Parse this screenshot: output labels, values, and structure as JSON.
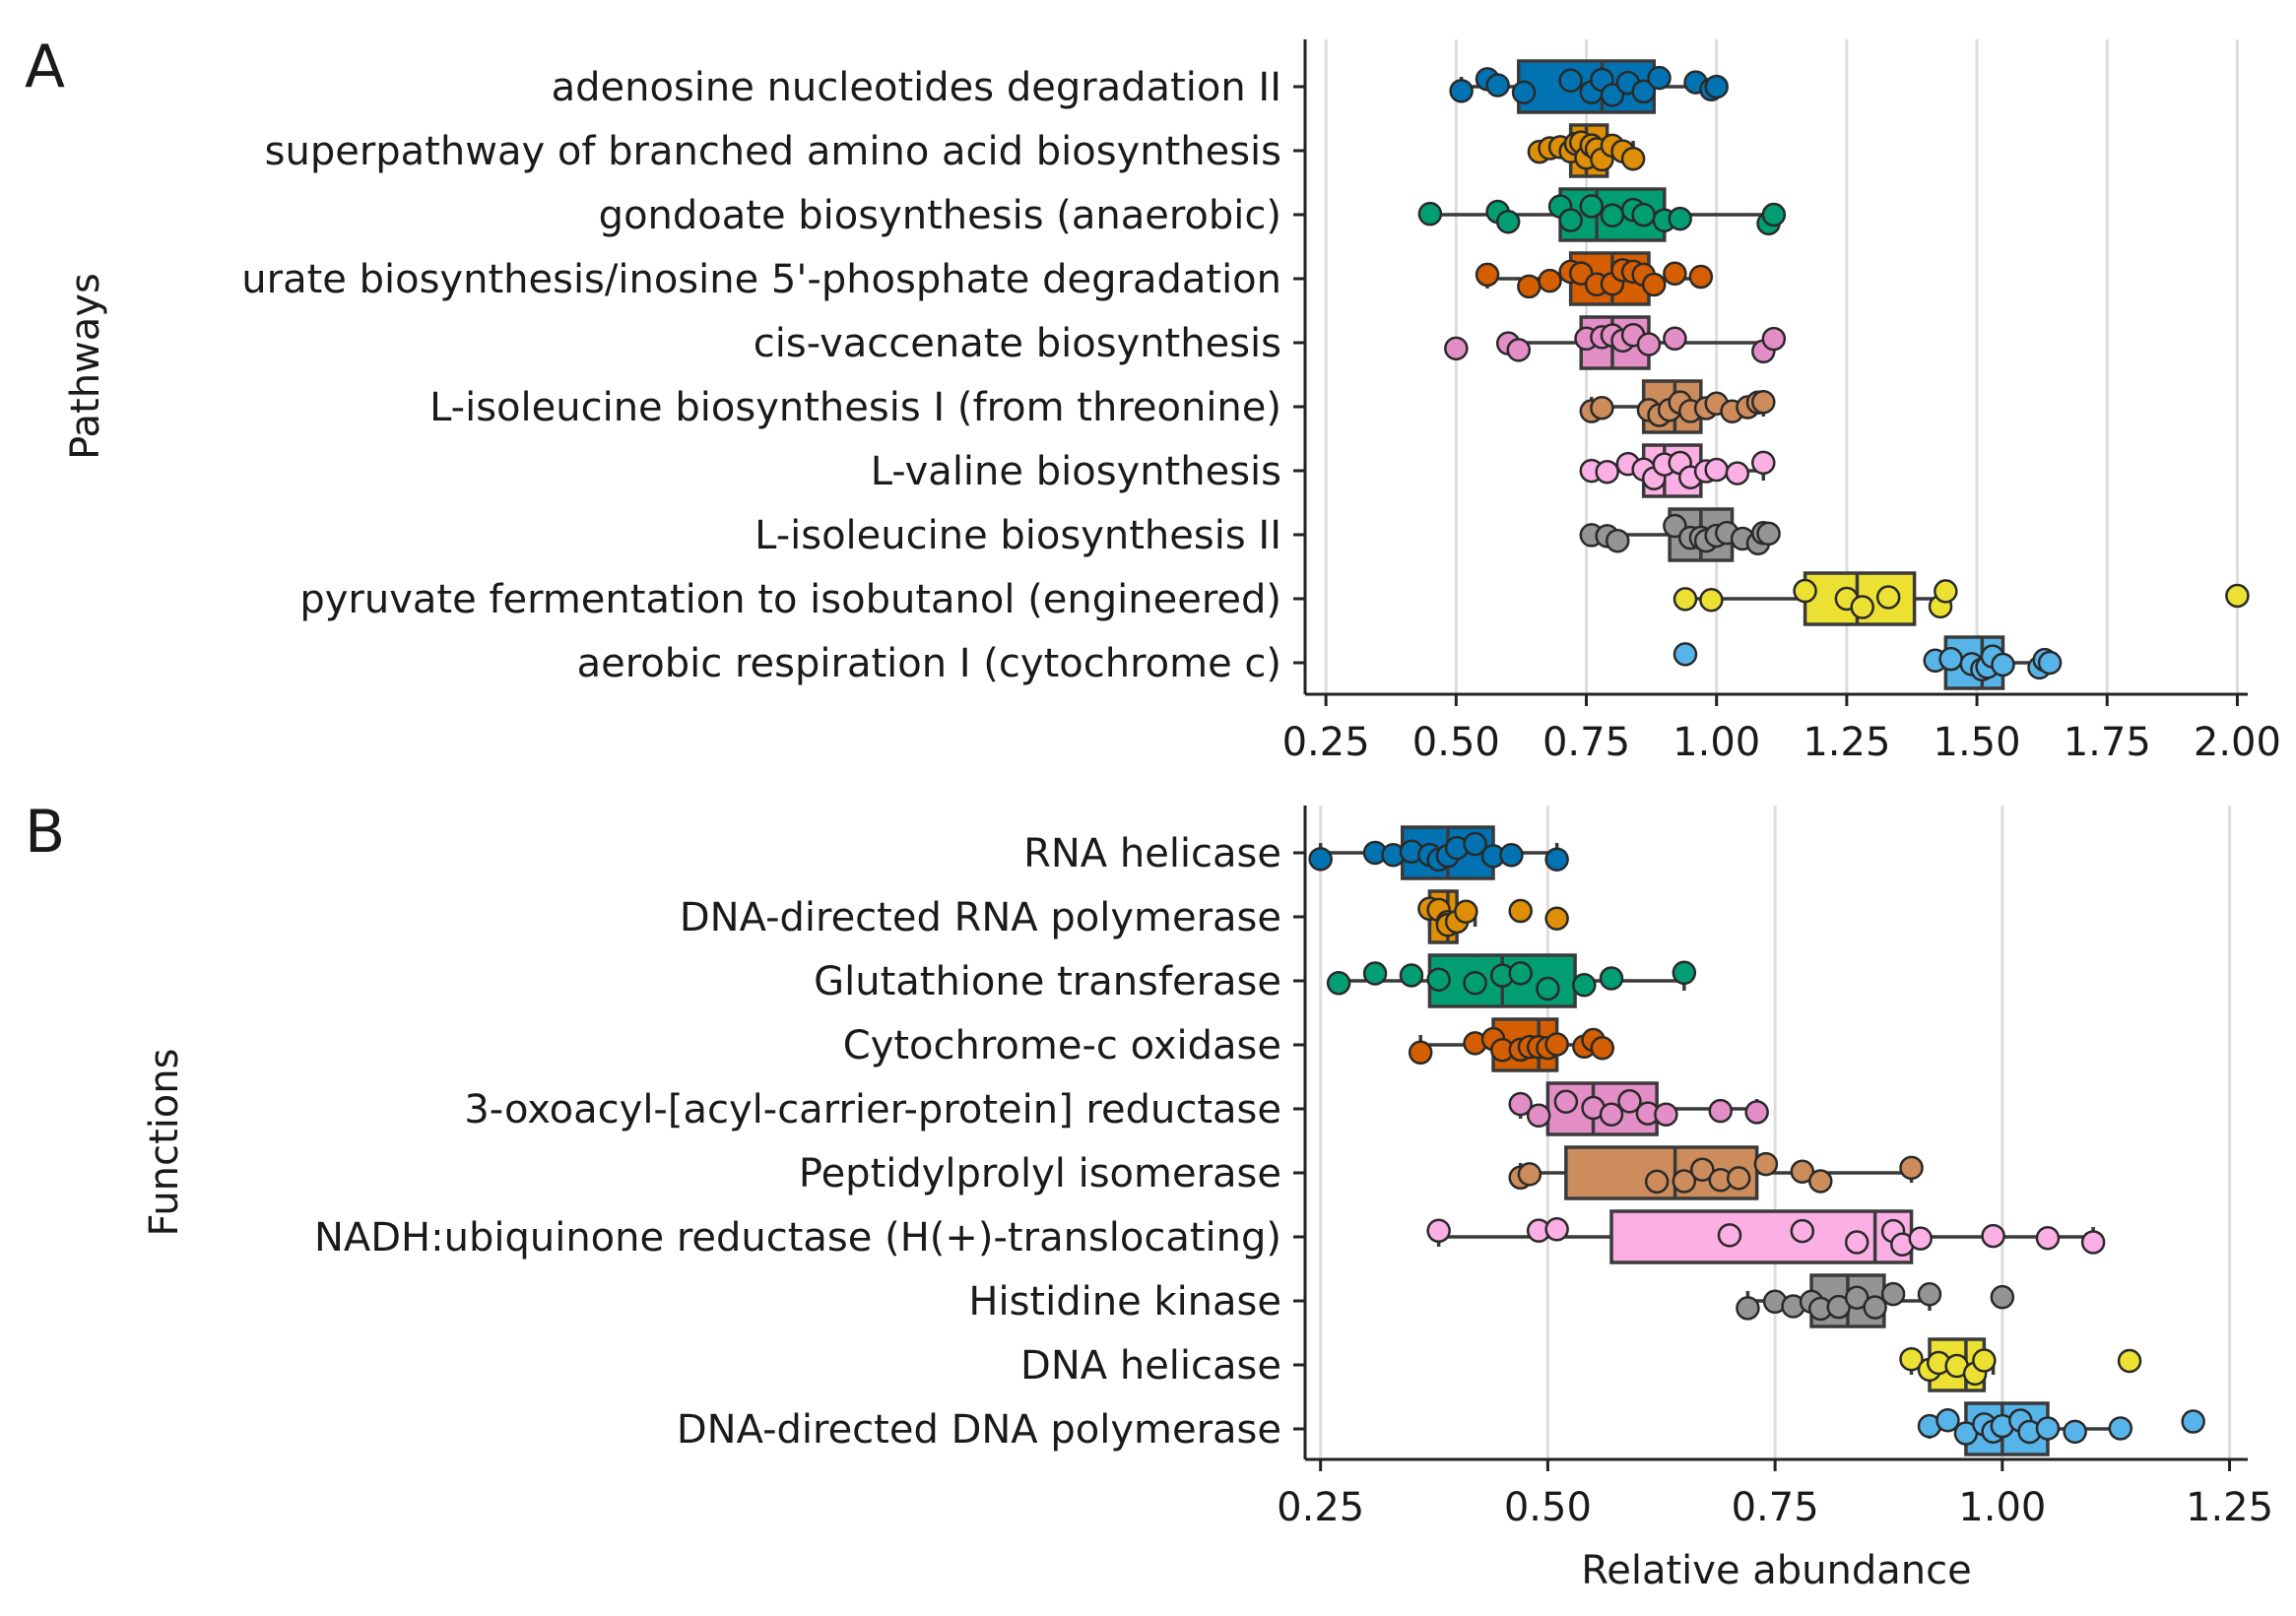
{
  "chart_data": [
    {
      "type": "boxplot",
      "panel": "A",
      "orientation": "horizontal",
      "ylabel": "Pathways",
      "xlabel": "",
      "xlim": [
        0.21,
        2.02
      ],
      "xticks": [
        0.25,
        0.5,
        0.75,
        1.0,
        1.25,
        1.5,
        1.75,
        2.0
      ],
      "xtick_labels": [
        "0.25",
        "0.50",
        "0.75",
        "1.00",
        "1.25",
        "1.50",
        "1.75",
        "2.00"
      ],
      "grid": "x",
      "series": [
        {
          "name": "adenosine nucleotides degradation II",
          "color": "#0173b2",
          "q1": 0.62,
          "median": 0.78,
          "q3": 0.88,
          "whisker_low": 0.51,
          "whisker_high": 1.0,
          "points": [
            0.51,
            0.56,
            0.58,
            0.63,
            0.72,
            0.76,
            0.78,
            0.8,
            0.83,
            0.86,
            0.89,
            0.96,
            0.99,
            1.0
          ]
        },
        {
          "name": "superpathway of branched amino acid biosynthesis",
          "color": "#de8f05",
          "q1": 0.72,
          "median": 0.75,
          "q3": 0.79,
          "whisker_low": 0.66,
          "whisker_high": 0.84,
          "points": [
            0.66,
            0.68,
            0.7,
            0.72,
            0.73,
            0.74,
            0.75,
            0.76,
            0.77,
            0.78,
            0.8,
            0.82,
            0.84
          ]
        },
        {
          "name": "gondoate biosynthesis (anaerobic)",
          "color": "#029e73",
          "q1": 0.7,
          "median": 0.77,
          "q3": 0.9,
          "whisker_low": 0.45,
          "whisker_high": 1.11,
          "points": [
            0.45,
            0.58,
            0.6,
            0.7,
            0.72,
            0.76,
            0.8,
            0.84,
            0.86,
            0.9,
            0.93,
            1.1,
            1.11
          ]
        },
        {
          "name": "urate biosynthesis/inosine 5'-phosphate degradation",
          "color": "#d55e00",
          "q1": 0.72,
          "median": 0.8,
          "q3": 0.87,
          "whisker_low": 0.56,
          "whisker_high": 0.97,
          "points": [
            0.56,
            0.64,
            0.68,
            0.72,
            0.74,
            0.77,
            0.8,
            0.82,
            0.84,
            0.86,
            0.88,
            0.92,
            0.97
          ]
        },
        {
          "name": "cis-vaccenate biosynthesis",
          "color": "#e48ec8",
          "q1": 0.74,
          "median": 0.8,
          "q3": 0.87,
          "whisker_low": 0.6,
          "whisker_high": 1.11,
          "points": [
            0.5,
            0.6,
            0.62,
            0.75,
            0.78,
            0.8,
            0.82,
            0.84,
            0.87,
            0.92,
            1.09,
            1.11
          ]
        },
        {
          "name": "L-isoleucine biosynthesis I (from threonine)",
          "color": "#cc8c5c",
          "q1": 0.86,
          "median": 0.92,
          "q3": 0.97,
          "whisker_low": 0.76,
          "whisker_high": 1.09,
          "points": [
            0.76,
            0.78,
            0.87,
            0.89,
            0.91,
            0.93,
            0.95,
            0.98,
            1.0,
            1.03,
            1.06,
            1.08,
            1.09
          ]
        },
        {
          "name": "L-valine biosynthesis",
          "color": "#fbafe4",
          "q1": 0.86,
          "median": 0.9,
          "q3": 0.97,
          "whisker_low": 0.76,
          "whisker_high": 1.09,
          "points": [
            0.76,
            0.79,
            0.83,
            0.86,
            0.88,
            0.9,
            0.93,
            0.95,
            0.98,
            1.0,
            1.04,
            1.09
          ]
        },
        {
          "name": "L-isoleucine biosynthesis II",
          "color": "#949494",
          "q1": 0.91,
          "median": 0.97,
          "q3": 1.03,
          "whisker_low": 0.76,
          "whisker_high": 1.1,
          "points": [
            0.76,
            0.79,
            0.81,
            0.92,
            0.95,
            0.97,
            0.98,
            1.0,
            1.02,
            1.05,
            1.08,
            1.09,
            1.1
          ]
        },
        {
          "name": "pyruvate fermentation to isobutanol (engineered)",
          "color": "#ece133",
          "q1": 1.17,
          "median": 1.27,
          "q3": 1.38,
          "whisker_low": 0.94,
          "whisker_high": 1.44,
          "points": [
            0.94,
            0.99,
            1.17,
            1.25,
            1.28,
            1.33,
            1.43,
            1.44,
            2.0
          ]
        },
        {
          "name": "aerobic respiration I (cytochrome c)",
          "color": "#56b4e9",
          "q1": 1.44,
          "median": 1.51,
          "q3": 1.55,
          "whisker_low": 1.42,
          "whisker_high": 1.64,
          "points": [
            0.94,
            1.42,
            1.45,
            1.49,
            1.51,
            1.52,
            1.53,
            1.55,
            1.62,
            1.63,
            1.64
          ]
        }
      ]
    },
    {
      "type": "boxplot",
      "panel": "B",
      "orientation": "horizontal",
      "ylabel": "Functions",
      "xlabel": "Relative abundance",
      "xlim": [
        0.233,
        1.27
      ],
      "xticks": [
        0.25,
        0.5,
        0.75,
        1.0,
        1.25
      ],
      "xtick_labels": [
        "0.25",
        "0.50",
        "0.75",
        "1.00",
        "1.25"
      ],
      "grid": "x",
      "series": [
        {
          "name": "RNA helicase",
          "color": "#0173b2",
          "q1": 0.34,
          "median": 0.39,
          "q3": 0.44,
          "whisker_low": 0.25,
          "whisker_high": 0.51,
          "points": [
            0.25,
            0.31,
            0.33,
            0.35,
            0.37,
            0.38,
            0.39,
            0.4,
            0.42,
            0.44,
            0.46,
            0.51
          ]
        },
        {
          "name": "DNA-directed RNA polymerase",
          "color": "#de8f05",
          "q1": 0.37,
          "median": 0.39,
          "q3": 0.4,
          "whisker_low": 0.37,
          "whisker_high": 0.42,
          "points": [
            0.37,
            0.38,
            0.39,
            0.39,
            0.4,
            0.41,
            0.47,
            0.51
          ]
        },
        {
          "name": "Glutathione transferase",
          "color": "#029e73",
          "q1": 0.37,
          "median": 0.45,
          "q3": 0.53,
          "whisker_low": 0.27,
          "whisker_high": 0.65,
          "points": [
            0.27,
            0.31,
            0.35,
            0.38,
            0.42,
            0.45,
            0.47,
            0.5,
            0.54,
            0.57,
            0.65
          ]
        },
        {
          "name": "Cytochrome-c oxidase",
          "color": "#d55e00",
          "q1": 0.44,
          "median": 0.49,
          "q3": 0.51,
          "whisker_low": 0.36,
          "whisker_high": 0.56,
          "points": [
            0.36,
            0.42,
            0.44,
            0.45,
            0.47,
            0.48,
            0.49,
            0.5,
            0.51,
            0.54,
            0.55,
            0.56
          ]
        },
        {
          "name": "3-oxoacyl-[acyl-carrier-protein] reductase",
          "color": "#e48ec8",
          "q1": 0.5,
          "median": 0.55,
          "q3": 0.62,
          "whisker_low": 0.47,
          "whisker_high": 0.73,
          "points": [
            0.47,
            0.49,
            0.52,
            0.55,
            0.57,
            0.59,
            0.61,
            0.63,
            0.69,
            0.73
          ]
        },
        {
          "name": "Peptidylprolyl isomerase",
          "color": "#cc8c5c",
          "q1": 0.52,
          "median": 0.64,
          "q3": 0.73,
          "whisker_low": 0.47,
          "whisker_high": 0.9,
          "points": [
            0.47,
            0.48,
            0.62,
            0.65,
            0.67,
            0.69,
            0.71,
            0.74,
            0.78,
            0.8,
            0.9
          ]
        },
        {
          "name": "NADH:ubiquinone reductase (H(+)-translocating)",
          "color": "#fbafe4",
          "q1": 0.57,
          "median": 0.86,
          "q3": 0.9,
          "whisker_low": 0.38,
          "whisker_high": 1.1,
          "points": [
            0.38,
            0.49,
            0.51,
            0.7,
            0.78,
            0.84,
            0.88,
            0.89,
            0.91,
            0.99,
            1.05,
            1.1
          ]
        },
        {
          "name": "Histidine kinase",
          "color": "#949494",
          "q1": 0.79,
          "median": 0.83,
          "q3": 0.87,
          "whisker_low": 0.72,
          "whisker_high": 0.92,
          "points": [
            0.72,
            0.75,
            0.77,
            0.79,
            0.8,
            0.82,
            0.84,
            0.86,
            0.88,
            0.92,
            1.0
          ]
        },
        {
          "name": "DNA helicase",
          "color": "#ece133",
          "q1": 0.92,
          "median": 0.96,
          "q3": 0.98,
          "whisker_low": 0.9,
          "whisker_high": 0.99,
          "points": [
            0.9,
            0.92,
            0.93,
            0.95,
            0.97,
            0.98,
            1.14
          ]
        },
        {
          "name": "DNA-directed DNA polymerase",
          "color": "#56b4e9",
          "q1": 0.96,
          "median": 1.0,
          "q3": 1.05,
          "whisker_low": 0.92,
          "whisker_high": 1.13,
          "points": [
            0.92,
            0.94,
            0.96,
            0.98,
            0.99,
            1.0,
            1.02,
            1.03,
            1.05,
            1.08,
            1.13,
            1.21
          ]
        }
      ]
    }
  ]
}
